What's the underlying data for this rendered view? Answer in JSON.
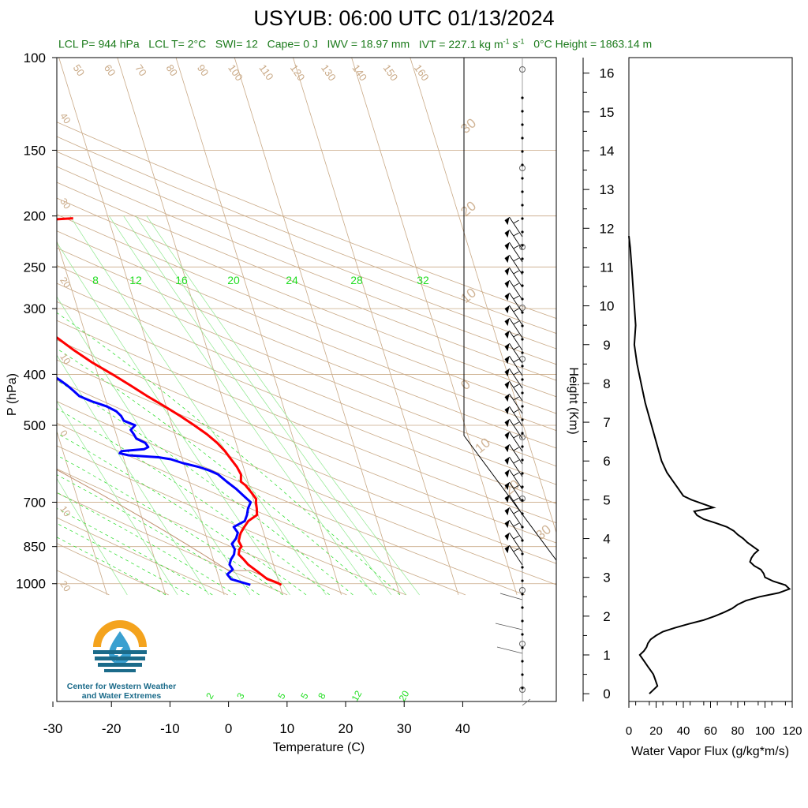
{
  "header": {
    "title": "USYUB: 06:00 UTC 01/13/2024",
    "stats": {
      "lcl_p": "LCL P= 944 hPa",
      "lcl_t": "LCL T= 2°C",
      "swi": "SWI= 12",
      "cape": "Cape= 0 J",
      "iwv": "IWV = 18.97 mm",
      "ivt_prefix": "IVT = 227.1 kg m",
      "ivt_exp1": "-1",
      "ivt_mid": " s",
      "ivt_exp2": "-1",
      "zero_height": "0°C Height = 1863.14 m"
    }
  },
  "logo": {
    "line1": "Center for Western Weather",
    "line2": "and Water Extremes",
    "icon": "water-drop-sun-icon",
    "colors": {
      "sun": "#f4a31d",
      "water": "#1b6b8a",
      "drop": "#3aa0d0"
    }
  },
  "chart_data": [
    {
      "type": "line",
      "subtype": "skew-T log-P",
      "xlabel": "Temperature (C)",
      "ylabel": "P (hPa)",
      "x_ticks": [
        -30,
        -20,
        -10,
        0,
        10,
        20,
        30,
        40
      ],
      "y_ticks": [
        100,
        150,
        200,
        250,
        300,
        400,
        500,
        700,
        850,
        1000
      ],
      "y_scale": "log",
      "ylim": [
        1050,
        100
      ],
      "mixing_ratio_labels": [
        "8",
        "12",
        "16",
        "20",
        "24",
        "28",
        "32"
      ],
      "mixing_ratio_bottom_labels": [
        "2",
        "3",
        "5",
        "5",
        "8",
        "12",
        "20"
      ],
      "isotherm_labels_left": [
        "40",
        "30",
        "20",
        "10",
        "0",
        "10",
        "20"
      ],
      "isotherm_labels_right": [
        "30",
        "20",
        "10",
        "0",
        "10",
        "20",
        "30"
      ],
      "dry_adiabat_labels": [
        "50",
        "60",
        "70",
        "80",
        "90",
        "100",
        "110",
        "120",
        "130",
        "140",
        "150",
        "160"
      ],
      "colors": {
        "temperature": "#ff0000",
        "dewpoint": "#0000ff",
        "isotherm": "#c9a986",
        "mixing_ratio": "#22dd22"
      },
      "series": [
        {
          "role": "temperature",
          "p": [
            1005,
            995,
            980,
            950,
            920,
            900,
            880,
            860,
            850,
            830,
            810,
            800,
            780,
            760,
            740,
            720,
            700,
            690,
            670,
            650,
            640,
            620,
            600,
            580,
            560,
            540,
            520,
            500,
            480,
            460,
            440,
            420,
            400,
            380,
            360,
            340,
            320,
            300,
            290,
            280,
            270,
            260,
            250,
            240,
            230,
            220,
            214,
            208,
            205,
            203,
            202
          ],
          "t": [
            10.3,
            9.6,
            8.2,
            7.0,
            5.7,
            5.2,
            4.6,
            5.0,
            5.5,
            5.3,
            5.8,
            6.1,
            7.0,
            8.0,
            9.8,
            10.1,
            10.3,
            10.5,
            10.0,
            9.4,
            8.8,
            9.2,
            8.9,
            8.3,
            7.7,
            6.8,
            5.5,
            3.8,
            1.9,
            -0.3,
            -2.7,
            -5.0,
            -7.5,
            -10.3,
            -12.8,
            -15.1,
            -17.3,
            -19.0,
            -19.5,
            -19.2,
            -19.4,
            -20.0,
            -20.8,
            -21.5,
            -22.1,
            -22.4,
            -21.0,
            -20.0,
            -15.0,
            -9.0,
            -6.0
          ]
        },
        {
          "role": "dewpoint",
          "p": [
            1005,
            995,
            980,
            960,
            940,
            920,
            900,
            880,
            860,
            840,
            820,
            800,
            780,
            760,
            740,
            720,
            700,
            680,
            660,
            640,
            620,
            610,
            600,
            590,
            580,
            575,
            572,
            570,
            565,
            560,
            555,
            550,
            540,
            530,
            520,
            510,
            500,
            490,
            480,
            470,
            460,
            450,
            440,
            430,
            420,
            410,
            400,
            380,
            360,
            340,
            320,
            305,
            300,
            295,
            290,
            285,
            280,
            270,
            260,
            250,
            240,
            230,
            225,
            220,
            215,
            212,
            208,
            205,
            203
          ],
          "t": [
            5.0,
            3.8,
            2.0,
            1.6,
            2.8,
            2.5,
            3.0,
            3.8,
            4.2,
            4.0,
            5.0,
            5.6,
            5.2,
            7.4,
            8.1,
            8.6,
            9.4,
            8.5,
            7.6,
            6.4,
            5.3,
            4.1,
            2.4,
            -0.1,
            -2.0,
            -4.0,
            -7.0,
            -9.0,
            -10.4,
            -10.0,
            -6.0,
            -5.2,
            -5.5,
            -6.8,
            -7.0,
            -7.3,
            -6.3,
            -8.0,
            -8.2,
            -8.8,
            -10.2,
            -12.5,
            -14.3,
            -15.0,
            -15.8,
            -16.8,
            -18.0,
            -20.2,
            -22.4,
            -24.6,
            -26.2,
            -26.7,
            -27.0,
            -22.5,
            -21.1,
            -22.0,
            -23.0,
            -23.5,
            -24.0,
            -24.0,
            -25.0,
            -28.8,
            -27.8,
            -31.5,
            -30.5,
            -30.0,
            -32.0,
            -31.0,
            -31.0
          ]
        }
      ]
    },
    {
      "type": "line",
      "xlabel": "Water Vapor Flux (g/kg*m/s)",
      "ylabel": "Height (Km)",
      "x_ticks": [
        0,
        20,
        40,
        60,
        80,
        100,
        120
      ],
      "y_ticks": [
        0,
        1,
        2,
        3,
        4,
        5,
        6,
        7,
        8,
        9,
        10,
        11,
        12,
        13,
        14,
        15,
        16
      ],
      "xlim": [
        0,
        120
      ],
      "ylim": [
        -0.2,
        16.4
      ],
      "series": [
        {
          "role": "water-vapor-flux",
          "h": [
            0.0,
            0.1,
            0.2,
            0.3,
            0.4,
            0.5,
            0.6,
            0.7,
            0.8,
            0.9,
            1.0,
            1.1,
            1.2,
            1.3,
            1.4,
            1.5,
            1.6,
            1.7,
            1.8,
            1.9,
            2.0,
            2.1,
            2.2,
            2.3,
            2.4,
            2.5,
            2.6,
            2.7,
            2.8,
            2.9,
            3.0,
            3.1,
            3.2,
            3.3,
            3.4,
            3.5,
            3.6,
            3.7,
            3.8,
            3.9,
            4.0,
            4.1,
            4.2,
            4.3,
            4.4,
            4.5,
            4.6,
            4.7,
            4.8,
            4.9,
            5.0,
            5.1,
            5.3,
            5.5,
            5.7,
            6.0,
            6.5,
            7.0,
            7.5,
            8.0,
            8.5,
            9.0,
            9.5,
            10.0,
            10.5,
            11.0,
            11.5,
            11.8
          ],
          "v": [
            15,
            18,
            21,
            20,
            19,
            18,
            16,
            14,
            12,
            10,
            8,
            11,
            13,
            14,
            16,
            20,
            25,
            34,
            44,
            55,
            63,
            70,
            76,
            80,
            86,
            96,
            110,
            118,
            115,
            106,
            100,
            99,
            97,
            92,
            89,
            90,
            92,
            95,
            91,
            87,
            84,
            80,
            77,
            72,
            64,
            55,
            50,
            48,
            62,
            54,
            46,
            40,
            36,
            32,
            28,
            24,
            20,
            16,
            12,
            9,
            6,
            4,
            5,
            4,
            3,
            2,
            1,
            0
          ]
        }
      ]
    }
  ],
  "wind_barbs": {
    "color": "#000000",
    "count": 60
  }
}
